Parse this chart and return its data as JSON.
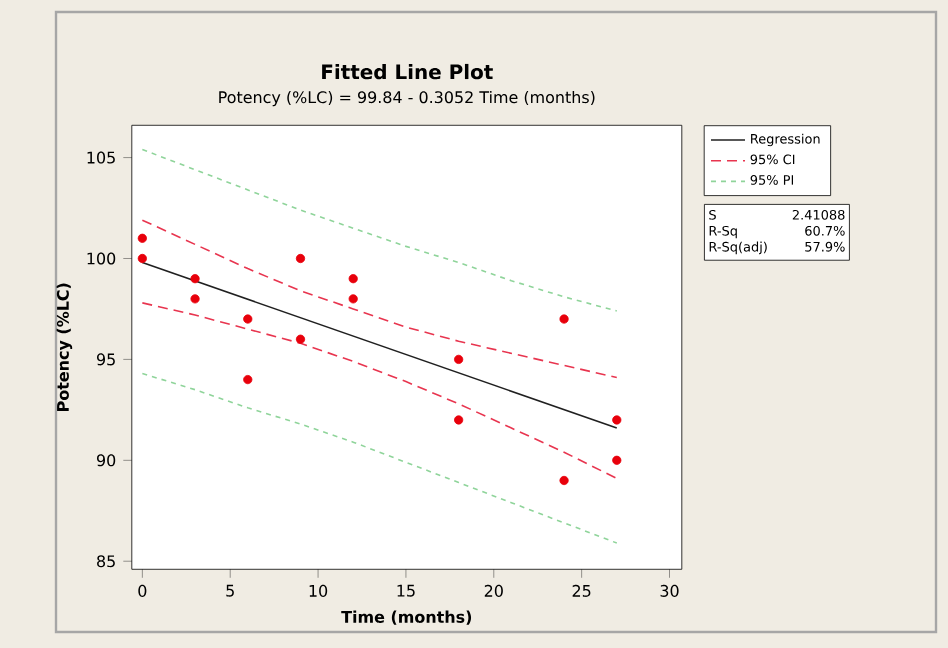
{
  "chart_data": {
    "type": "line",
    "title": "Fitted Line Plot",
    "subtitle": "Potency (%LC) =  99.84 - 0.3052 Time (months)",
    "xlabel": "Time (months)",
    "ylabel": "Potency (%LC)",
    "xlim": [
      -0.6,
      30.7
    ],
    "ylim": [
      84.6,
      106.6
    ],
    "xticks": [
      0,
      5,
      10,
      15,
      20,
      25,
      30
    ],
    "yticks": [
      85,
      90,
      95,
      100,
      105
    ],
    "legend": "right",
    "grid": false,
    "series": [
      {
        "type": "scatter",
        "marker": "circle",
        "color": "#e8000b",
        "x": [
          0,
          0,
          3,
          3,
          6,
          6,
          9,
          9,
          12,
          12,
          18,
          18,
          24,
          24,
          27,
          27
        ],
        "values": [
          101,
          100,
          99,
          98,
          97,
          94,
          100,
          96,
          99,
          98,
          95,
          92,
          97,
          89,
          92,
          90
        ]
      },
      {
        "name": "Regression",
        "color": "#202020",
        "line_style": "solid",
        "x": [
          0,
          27
        ],
        "values": [
          99.8,
          91.6
        ]
      },
      {
        "name": "95% CI",
        "color": "#e8354f",
        "line_style": "dashed",
        "x": [
          0,
          3,
          6,
          9,
          12,
          15,
          18,
          21,
          24,
          27
        ],
        "values": [
          101.9,
          100.7,
          99.5,
          98.4,
          97.5,
          96.6,
          95.9,
          95.3,
          94.7,
          94.1
        ]
      },
      {
        "color": "#e8354f",
        "line_style": "dashed",
        "x": [
          0,
          3,
          6,
          9,
          12,
          15,
          18,
          21,
          24,
          27
        ],
        "values": [
          97.8,
          97.2,
          96.5,
          95.8,
          94.9,
          93.9,
          92.8,
          91.6,
          90.4,
          89.1
        ]
      },
      {
        "name": "95% PI",
        "color": "#8fd49a",
        "line_style": "dotted",
        "x": [
          0,
          3,
          6,
          9,
          12,
          15,
          18,
          21,
          24,
          27
        ],
        "values": [
          105.4,
          104.4,
          103.4,
          102.4,
          101.5,
          100.6,
          99.8,
          98.9,
          98.1,
          97.4
        ]
      },
      {
        "color": "#8fd49a",
        "line_style": "dotted",
        "x": [
          0,
          3,
          6,
          9,
          12,
          15,
          18,
          21,
          24,
          27
        ],
        "values": [
          94.3,
          93.5,
          92.6,
          91.8,
          90.9,
          89.9,
          88.9,
          87.9,
          86.9,
          85.9
        ]
      }
    ],
    "annotations": [
      "S",
      "2.41088",
      "R-Sq",
      "60.7%",
      "R-Sq(adj)",
      "57.9%"
    ]
  }
}
